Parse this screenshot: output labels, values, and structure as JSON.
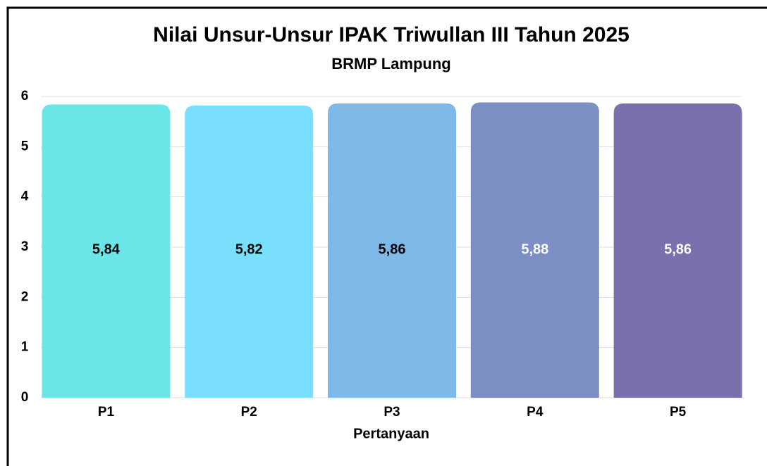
{
  "chart_data": {
    "type": "bar",
    "title": "Nilai Unsur-Unsur IPAK Triwullan III Tahun 2025",
    "subtitle": "BRMP Lampung",
    "x_label": "Pertanyaan",
    "categories": [
      "P1",
      "P2",
      "P3",
      "P4",
      "P5"
    ],
    "values": [
      5.84,
      5.82,
      5.86,
      5.88,
      5.86
    ],
    "value_labels": [
      "5,84",
      "5,82",
      "5,86",
      "5,88",
      "5,86"
    ],
    "colors": [
      "#6ce5e8",
      "#79dffc",
      "#7fb9e8",
      "#7b8fc2",
      "#7b6fad"
    ],
    "label_colors": [
      "#000000",
      "#000000",
      "#000000",
      "#ffffff",
      "#ffffff"
    ],
    "ylim": [
      0,
      6
    ],
    "yticks": [
      0,
      1,
      2,
      3,
      4,
      5,
      6
    ],
    "grid": true
  }
}
